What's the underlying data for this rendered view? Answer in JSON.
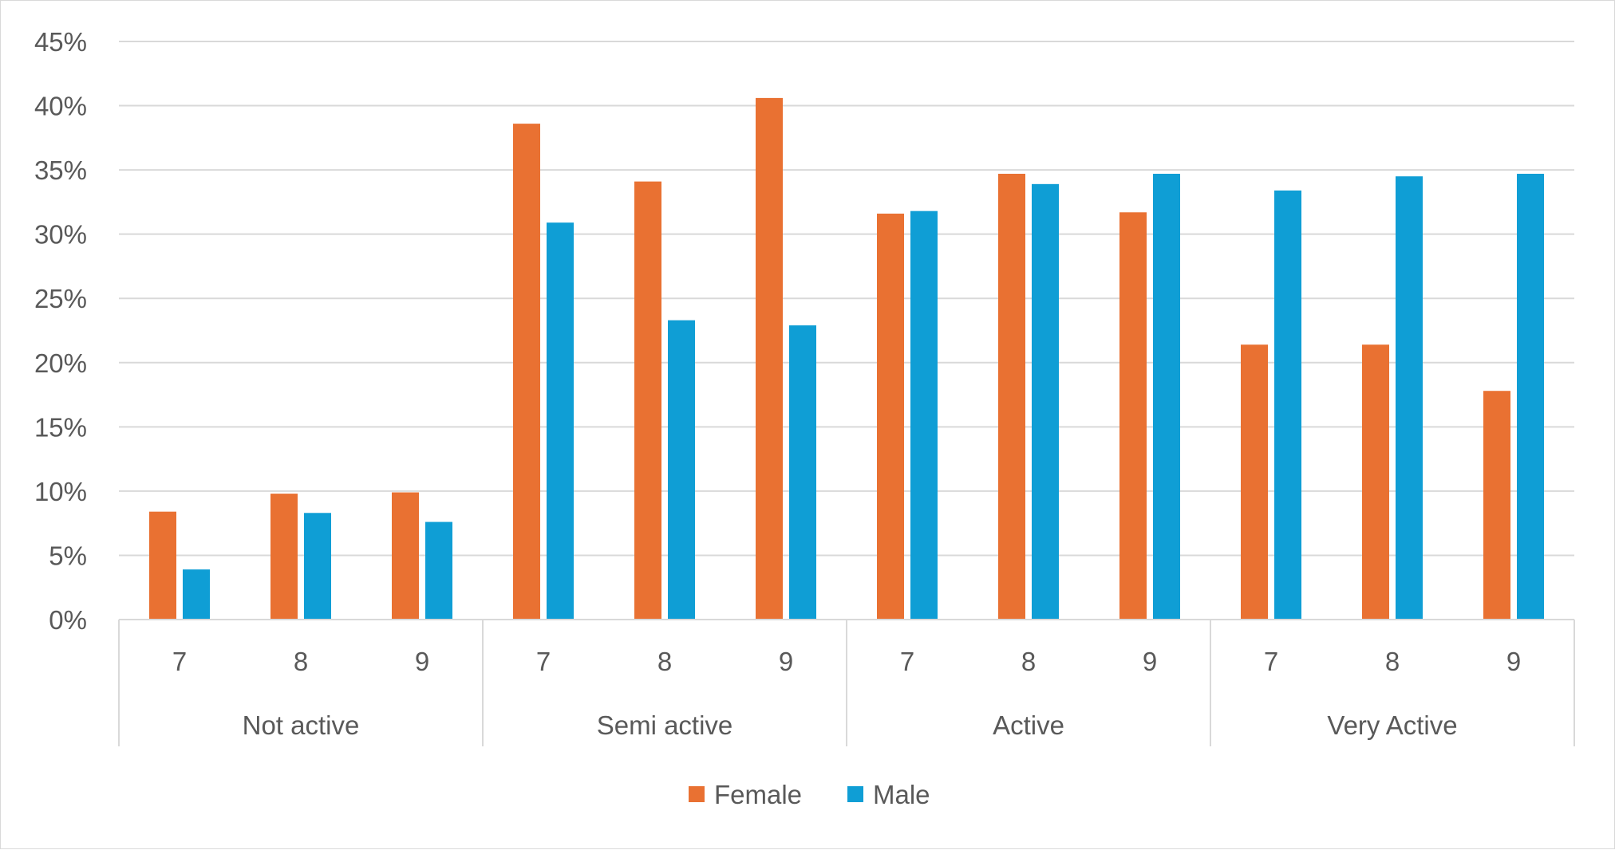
{
  "chart_data": {
    "type": "bar",
    "groups": [
      "Not active",
      "Semi active",
      "Active",
      "Very Active"
    ],
    "subcategories": [
      "7",
      "8",
      "9"
    ],
    "series": [
      {
        "name": "Female",
        "color": "#E97132",
        "values": [
          8.4,
          9.8,
          9.9,
          38.6,
          34.1,
          40.6,
          31.6,
          34.7,
          31.7,
          21.4,
          21.4,
          17.8
        ]
      },
      {
        "name": "Male",
        "color": "#0F9ED5",
        "values": [
          3.9,
          8.3,
          7.6,
          30.9,
          23.3,
          22.9,
          31.8,
          33.9,
          34.7,
          33.4,
          34.5,
          34.7
        ]
      }
    ],
    "y_ticks": [
      "0%",
      "5%",
      "10%",
      "15%",
      "20%",
      "25%",
      "30%",
      "35%",
      "40%",
      "45%"
    ],
    "ylim": [
      0,
      45
    ],
    "grid": true,
    "legend_position": "bottom",
    "title": "",
    "xlabel": "",
    "ylabel": ""
  }
}
